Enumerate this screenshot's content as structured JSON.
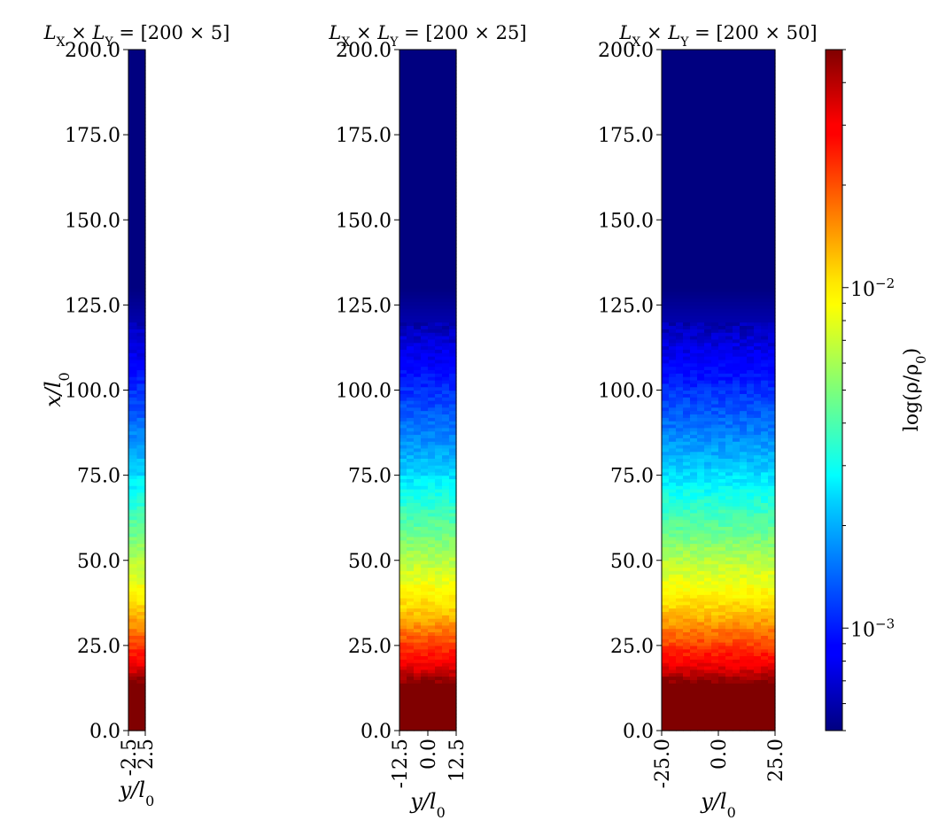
{
  "chart_data": [
    {
      "type": "heatmap",
      "title": "L_X × L_Y = [200 × 5]",
      "xlabel": "y/l_0",
      "ylabel": "x/l_0",
      "xlim": [
        -2.5,
        2.5
      ],
      "ylim": [
        0.0,
        200.0
      ],
      "xticks": [
        "-2.5",
        "2.5"
      ],
      "yticks": [
        "0.0",
        "25.0",
        "50.0",
        "75.0",
        "100.0",
        "125.0",
        "150.0",
        "175.0",
        "200.0"
      ]
    },
    {
      "type": "heatmap",
      "title": "L_X × L_Y = [200 × 25]",
      "xlabel": "y/l_0",
      "ylabel": "",
      "xlim": [
        -12.5,
        12.5
      ],
      "ylim": [
        0.0,
        200.0
      ],
      "xticks": [
        "-12.5",
        "0.0",
        "12.5"
      ],
      "yticks": [
        "0.0",
        "25.0",
        "50.0",
        "75.0",
        "100.0",
        "125.0",
        "150.0",
        "175.0",
        "200.0"
      ]
    },
    {
      "type": "heatmap",
      "title": "L_X × L_Y = [200 × 50]",
      "xlabel": "y/l_0",
      "ylabel": "",
      "xlim": [
        -25.0,
        25.0
      ],
      "ylim": [
        0.0,
        200.0
      ],
      "xticks": [
        "-25.0",
        "0.0",
        "25.0"
      ],
      "yticks": [
        "0.0",
        "25.0",
        "50.0",
        "75.0",
        "100.0",
        "125.0",
        "150.0",
        "175.0",
        "200.0"
      ]
    }
  ],
  "colorbar": {
    "label": "log(ρ/ρ_0)",
    "scale": "log",
    "range": [
      0.0005,
      0.05
    ],
    "colormap": "jet",
    "major_ticks": [
      {
        "value": 0.001,
        "label": "10−3"
      },
      {
        "value": 0.01,
        "label": "10−2"
      }
    ]
  },
  "profile": {
    "x": [
      0,
      10,
      14,
      17,
      20,
      25,
      30,
      35,
      40,
      45,
      50,
      55,
      60,
      65,
      70,
      75,
      80,
      90,
      100,
      110,
      115,
      120,
      130,
      200
    ],
    "rho": [
      0.05,
      0.05,
      0.05,
      0.038,
      0.03,
      0.022,
      0.016,
      0.012,
      0.0095,
      0.0078,
      0.0065,
      0.0052,
      0.0043,
      0.0036,
      0.003,
      0.0025,
      0.0021,
      0.0015,
      0.0011,
      0.0008,
      0.0007,
      0.0006,
      0.0005,
      0.0005
    ]
  }
}
